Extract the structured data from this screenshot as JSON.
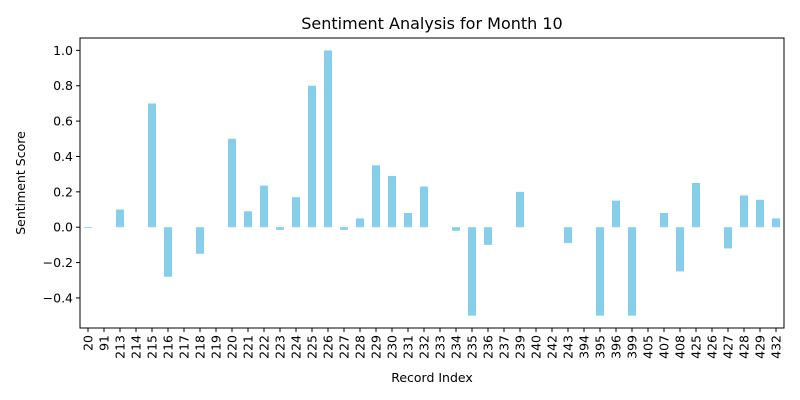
{
  "chart_data": {
    "type": "bar",
    "title": "Sentiment Analysis for Month 10",
    "xlabel": "Record Index",
    "ylabel": "Sentiment Score",
    "ylim": [
      -0.57,
      1.07
    ],
    "yticks": [
      -0.4,
      -0.2,
      0.0,
      0.2,
      0.4,
      0.6,
      0.8,
      1.0
    ],
    "ytick_labels": [
      "−0.4",
      "−0.2",
      "0.0",
      "0.2",
      "0.4",
      "0.6",
      "0.8",
      "1.0"
    ],
    "grid": false,
    "bar_color": "#87ceeb",
    "categories": [
      "20",
      "91",
      "213",
      "214",
      "215",
      "216",
      "217",
      "218",
      "219",
      "220",
      "221",
      "222",
      "223",
      "224",
      "225",
      "226",
      "227",
      "228",
      "229",
      "230",
      "231",
      "232",
      "233",
      "234",
      "235",
      "236",
      "237",
      "239",
      "240",
      "242",
      "243",
      "394",
      "395",
      "396",
      "399",
      "405",
      "407",
      "408",
      "425",
      "426",
      "427",
      "428",
      "429",
      "432"
    ],
    "values": [
      -0.005,
      0.0,
      0.1,
      0.0,
      0.7,
      -0.28,
      0.0,
      -0.15,
      0.0,
      0.5,
      0.09,
      0.235,
      -0.015,
      0.17,
      0.8,
      1.0,
      -0.015,
      0.05,
      0.35,
      0.29,
      0.08,
      0.23,
      0.0,
      -0.02,
      -0.5,
      -0.1,
      0.0,
      0.2,
      0.0,
      0.0,
      -0.09,
      0.0,
      -0.5,
      0.15,
      -0.5,
      0.0,
      0.08,
      -0.25,
      0.25,
      0.0,
      -0.12,
      0.18,
      0.155,
      0.05
    ]
  }
}
